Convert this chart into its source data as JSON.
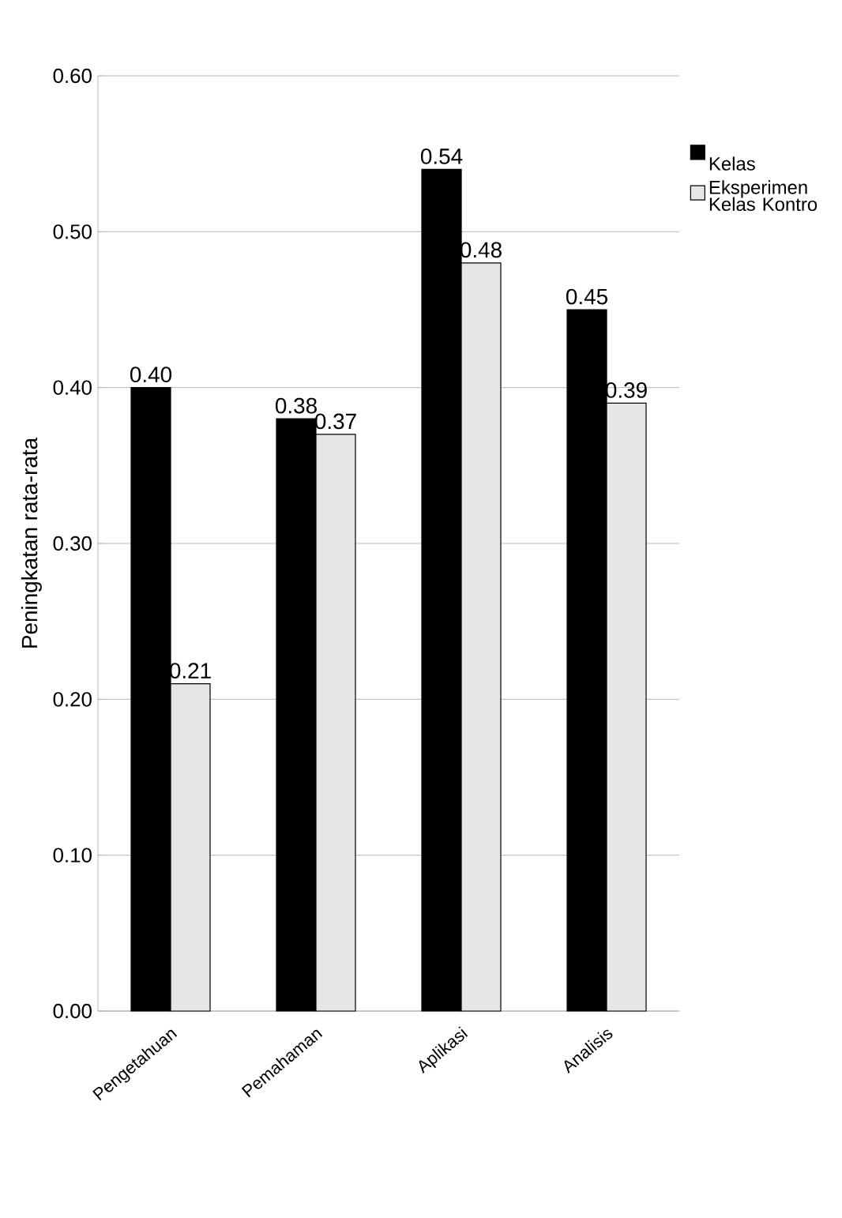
{
  "chart_data": {
    "type": "bar",
    "ylabel": "Peningkatan rata-rata",
    "categories": [
      "Pengetahuan",
      "Pemahaman",
      "Aplikasi",
      "Analisis"
    ],
    "series": [
      {
        "name": "Kelas Eksperimen",
        "color": "#000000",
        "values": [
          0.4,
          0.38,
          0.54,
          0.45
        ],
        "value_labels": [
          "0.40",
          "0.38",
          "0.54",
          "0.45"
        ]
      },
      {
        "name": "Kelas Kontro",
        "color": "#e6e6e6",
        "values": [
          0.21,
          0.37,
          0.48,
          0.39
        ],
        "value_labels": [
          "0.21",
          "0.37",
          "0.48",
          "0.39"
        ]
      }
    ],
    "ylim": [
      0,
      0.6
    ],
    "yticks": [
      {
        "value": 0,
        "label": "0.00"
      },
      {
        "value": 0.1,
        "label": "0.10"
      },
      {
        "value": 0.2,
        "label": "0.20"
      },
      {
        "value": 0.3,
        "label": "0.30"
      },
      {
        "value": 0.4,
        "label": "0.40"
      },
      {
        "value": 0.5,
        "label": "0.50"
      },
      {
        "value": 0.6,
        "label": "0.60"
      }
    ],
    "grid": "y",
    "legend": "right"
  }
}
